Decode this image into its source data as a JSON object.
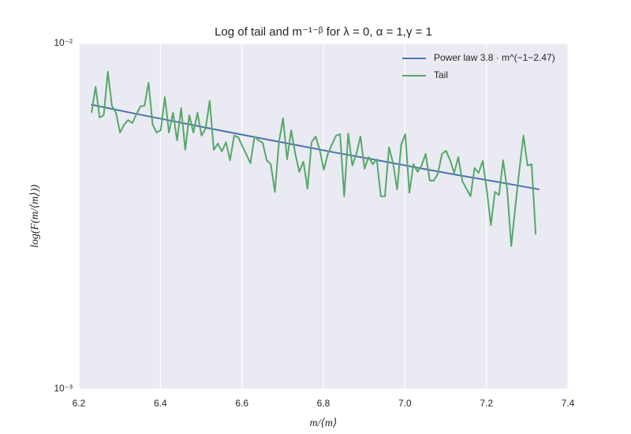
{
  "chart_data": {
    "type": "line",
    "title": "Log of tail and m⁻¹⁻ᵝ for λ = 0, α = 1,γ = 1",
    "x_label": "m/⟨m⟩",
    "y_label": "log(F(m/⟨m⟩))",
    "yscale": "log",
    "grid": true,
    "legend": "upper right",
    "xlim": [
      6.2,
      7.4
    ],
    "xticks": [
      6.2,
      6.4,
      6.6,
      6.8,
      {
        "value": 7,
        "label": "7.0"
      },
      7.2,
      7.4
    ],
    "ylim": [
      0.001,
      0.01
    ],
    "yticks": [
      {
        "value": 0.001,
        "label": "10⁻³"
      },
      {
        "value": 0.01,
        "label": "10⁻²"
      }
    ],
    "series": [
      {
        "name": "Power law  3.8 · m^(−1−2.47)",
        "color": "#4c72b0",
        "x": [
          6.23,
          6.33,
          6.43,
          6.53,
          6.63,
          6.73,
          6.83,
          6.93,
          7.03,
          7.13,
          7.23,
          7.33
        ],
        "values": [
          0.00665,
          0.00629,
          0.00596,
          0.00565,
          0.00536,
          0.00509,
          0.00483,
          0.0046,
          0.00437,
          0.00416,
          0.00397,
          0.00378
        ]
      },
      {
        "name": "Tail",
        "color": "#55a868",
        "x": [
          6.231,
          6.241,
          6.251,
          6.261,
          6.271,
          6.281,
          6.291,
          6.301,
          6.311,
          6.321,
          6.331,
          6.341,
          6.351,
          6.361,
          6.371,
          6.381,
          6.391,
          6.401,
          6.411,
          6.421,
          6.431,
          6.441,
          6.451,
          6.461,
          6.471,
          6.481,
          6.491,
          6.501,
          6.511,
          6.521,
          6.531,
          6.541,
          6.551,
          6.561,
          6.571,
          6.581,
          6.591,
          6.601,
          6.611,
          6.621,
          6.631,
          6.641,
          6.651,
          6.661,
          6.671,
          6.681,
          6.691,
          6.701,
          6.711,
          6.721,
          6.731,
          6.741,
          6.751,
          6.761,
          6.771,
          6.781,
          6.791,
          6.801,
          6.811,
          6.821,
          6.831,
          6.841,
          6.851,
          6.861,
          6.871,
          6.881,
          6.891,
          6.901,
          6.911,
          6.921,
          6.931,
          6.941,
          6.951,
          6.961,
          6.971,
          6.981,
          6.991,
          7.001,
          7.011,
          7.021,
          7.031,
          7.041,
          7.051,
          7.061,
          7.071,
          7.081,
          7.091,
          7.101,
          7.111,
          7.121,
          7.131,
          7.141,
          7.151,
          7.161,
          7.171,
          7.181,
          7.191,
          7.201,
          7.211,
          7.221,
          7.231,
          7.241,
          7.251,
          7.261,
          7.271,
          7.281,
          7.291,
          7.301,
          7.311,
          7.321
        ],
        "values": [
          0.0063,
          0.00749,
          0.0061,
          0.0062,
          0.00828,
          0.0066,
          0.0063,
          0.00552,
          0.00582,
          0.006,
          0.00588,
          0.00623,
          0.00657,
          0.0066,
          0.00769,
          0.00582,
          0.00552,
          0.00561,
          0.00699,
          0.00552,
          0.0063,
          0.00524,
          0.0065,
          0.00492,
          0.0062,
          0.00552,
          0.0063,
          0.00541,
          0.00567,
          0.00682,
          0.00492,
          0.00513,
          0.00487,
          0.00518,
          0.00459,
          0.00541,
          0.00535,
          0.00505,
          0.00477,
          0.0045,
          0.00538,
          0.00524,
          0.00516,
          0.00459,
          0.00447,
          0.00372,
          0.00518,
          0.00607,
          0.00462,
          0.00561,
          0.00479,
          0.00425,
          0.00455,
          0.0038,
          0.00518,
          0.00538,
          0.00492,
          0.00431,
          0.00479,
          0.0051,
          0.00541,
          0.00546,
          0.00361,
          0.00549,
          0.00443,
          0.00479,
          0.00538,
          0.00434,
          0.00469,
          0.00447,
          0.00462,
          0.00361,
          0.00361,
          0.005,
          0.0045,
          0.00378,
          0.0051,
          0.00546,
          0.0037,
          0.00447,
          0.00425,
          0.00443,
          0.00479,
          0.00401,
          0.00401,
          0.0042,
          0.00479,
          0.00489,
          0.00459,
          0.00422,
          0.00469,
          0.00399,
          0.0038,
          0.00361,
          0.00436,
          0.00422,
          0.00457,
          0.00376,
          0.00298,
          0.00372,
          0.00364,
          0.00459,
          0.00378,
          0.00259,
          0.00337,
          0.00431,
          0.00541,
          0.00443,
          0.00447,
          0.0028
        ]
      }
    ]
  }
}
